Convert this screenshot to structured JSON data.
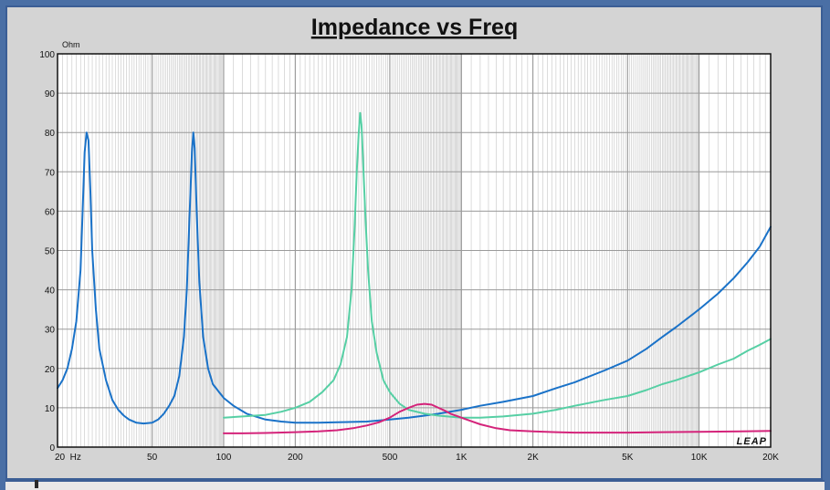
{
  "chart_data": {
    "type": "line",
    "title": "Impedance vs Freq",
    "ylabel": "Ohm",
    "xlabel": "",
    "xscale": "log",
    "xlim": [
      20,
      20000
    ],
    "ylim": [
      0,
      100
    ],
    "grid": true,
    "y_ticks": [
      0,
      10,
      20,
      30,
      40,
      50,
      60,
      70,
      80,
      90,
      100
    ],
    "x_ticks": [
      {
        "value": 20,
        "label": "20  Hz"
      },
      {
        "value": 50,
        "label": "50"
      },
      {
        "value": 100,
        "label": "100"
      },
      {
        "value": 200,
        "label": "200"
      },
      {
        "value": 500,
        "label": "500"
      },
      {
        "value": 1000,
        "label": "1K"
      },
      {
        "value": 2000,
        "label": "2K"
      },
      {
        "value": 5000,
        "label": "5K"
      },
      {
        "value": 10000,
        "label": "10K"
      },
      {
        "value": 20000,
        "label": "20K"
      }
    ],
    "logo": "LEAP",
    "series": [
      {
        "color": "#1a72c8",
        "points": [
          [
            20,
            15
          ],
          [
            21,
            17
          ],
          [
            22,
            20
          ],
          [
            23,
            25
          ],
          [
            24,
            32
          ],
          [
            25,
            45
          ],
          [
            25.5,
            60
          ],
          [
            26,
            75
          ],
          [
            26.5,
            80
          ],
          [
            27,
            78
          ],
          [
            27.5,
            65
          ],
          [
            28,
            50
          ],
          [
            29,
            35
          ],
          [
            30,
            25
          ],
          [
            32,
            17
          ],
          [
            34,
            12
          ],
          [
            36,
            9.5
          ],
          [
            38,
            8
          ],
          [
            40,
            7
          ],
          [
            43,
            6.2
          ],
          [
            46,
            6
          ],
          [
            50,
            6.2
          ],
          [
            53,
            7
          ],
          [
            56,
            8.5
          ],
          [
            59,
            10.5
          ],
          [
            62,
            13
          ],
          [
            65,
            18
          ],
          [
            68,
            28
          ],
          [
            70,
            40
          ],
          [
            72,
            60
          ],
          [
            73.5,
            75
          ],
          [
            74.5,
            80
          ],
          [
            75.5,
            76
          ],
          [
            77,
            60
          ],
          [
            79,
            42
          ],
          [
            82,
            28
          ],
          [
            86,
            20
          ],
          [
            90,
            16
          ],
          [
            100,
            12.5
          ],
          [
            110,
            10.5
          ],
          [
            125,
            8.5
          ],
          [
            150,
            7
          ],
          [
            175,
            6.5
          ],
          [
            200,
            6.2
          ],
          [
            250,
            6.2
          ],
          [
            300,
            6.3
          ],
          [
            400,
            6.5
          ],
          [
            500,
            7
          ],
          [
            600,
            7.5
          ],
          [
            700,
            8
          ],
          [
            800,
            8.5
          ],
          [
            1000,
            9.5
          ],
          [
            1200,
            10.5
          ],
          [
            1500,
            11.5
          ],
          [
            2000,
            13
          ],
          [
            2500,
            15
          ],
          [
            3000,
            16.5
          ],
          [
            4000,
            19.5
          ],
          [
            5000,
            22
          ],
          [
            6000,
            25
          ],
          [
            7000,
            28
          ],
          [
            8000,
            30.5
          ],
          [
            10000,
            35
          ],
          [
            12000,
            39
          ],
          [
            14000,
            43
          ],
          [
            16000,
            47
          ],
          [
            18000,
            51
          ],
          [
            20000,
            56
          ]
        ]
      },
      {
        "color": "#56cfa4",
        "points": [
          [
            100,
            7.5
          ],
          [
            120,
            7.8
          ],
          [
            150,
            8.2
          ],
          [
            175,
            9
          ],
          [
            200,
            10
          ],
          [
            230,
            11.5
          ],
          [
            260,
            14
          ],
          [
            290,
            17
          ],
          [
            310,
            21
          ],
          [
            330,
            28
          ],
          [
            345,
            40
          ],
          [
            355,
            55
          ],
          [
            363,
            70
          ],
          [
            370,
            80
          ],
          [
            375,
            85
          ],
          [
            380,
            82
          ],
          [
            385,
            74
          ],
          [
            395,
            58
          ],
          [
            405,
            45
          ],
          [
            420,
            32
          ],
          [
            440,
            24
          ],
          [
            470,
            17
          ],
          [
            500,
            14
          ],
          [
            550,
            11
          ],
          [
            600,
            9.5
          ],
          [
            700,
            8.5
          ],
          [
            800,
            8
          ],
          [
            1000,
            7.5
          ],
          [
            1200,
            7.5
          ],
          [
            1500,
            7.8
          ],
          [
            2000,
            8.5
          ],
          [
            2500,
            9.5
          ],
          [
            3000,
            10.5
          ],
          [
            4000,
            12
          ],
          [
            5000,
            13
          ],
          [
            6000,
            14.5
          ],
          [
            7000,
            16
          ],
          [
            8000,
            17
          ],
          [
            10000,
            19
          ],
          [
            12000,
            21
          ],
          [
            14000,
            22.5
          ],
          [
            16000,
            24.5
          ],
          [
            18000,
            26
          ],
          [
            20000,
            27.5
          ]
        ]
      },
      {
        "color": "#d4237a",
        "points": [
          [
            100,
            3.5
          ],
          [
            120,
            3.5
          ],
          [
            150,
            3.6
          ],
          [
            200,
            3.8
          ],
          [
            250,
            4
          ],
          [
            300,
            4.3
          ],
          [
            350,
            4.8
          ],
          [
            400,
            5.5
          ],
          [
            450,
            6.3
          ],
          [
            500,
            7.5
          ],
          [
            550,
            9
          ],
          [
            600,
            10
          ],
          [
            650,
            10.8
          ],
          [
            700,
            11
          ],
          [
            750,
            10.8
          ],
          [
            800,
            10
          ],
          [
            850,
            9.3
          ],
          [
            900,
            8.5
          ],
          [
            1000,
            7.5
          ],
          [
            1100,
            6.6
          ],
          [
            1200,
            5.8
          ],
          [
            1400,
            4.8
          ],
          [
            1600,
            4.3
          ],
          [
            2000,
            4
          ],
          [
            2500,
            3.8
          ],
          [
            3000,
            3.7
          ],
          [
            4000,
            3.7
          ],
          [
            5000,
            3.7
          ],
          [
            7000,
            3.8
          ],
          [
            10000,
            3.9
          ],
          [
            15000,
            4
          ],
          [
            20000,
            4.1
          ]
        ]
      }
    ]
  }
}
